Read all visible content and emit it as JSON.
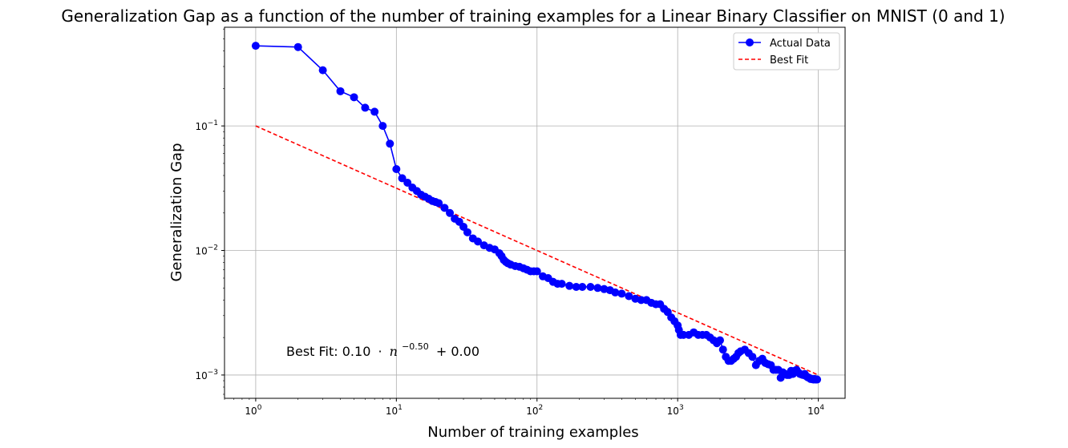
{
  "chart_data": {
    "type": "line",
    "title": "Generalization Gap as a function of the number of training examples for a Linear Binary Classifier on MNIST (0 and 1)",
    "xlabel": "Number of training examples",
    "ylabel": "Generalization Gap",
    "xscale": "log",
    "yscale": "log",
    "xlim": [
      0.6,
      15500
    ],
    "ylim": [
      0.00065,
      0.62
    ],
    "grid": true,
    "legend_position": "top-right",
    "x_ticks": [
      {
        "value": 1,
        "base": "10",
        "exp": "0"
      },
      {
        "value": 10,
        "base": "10",
        "exp": "1"
      },
      {
        "value": 100,
        "base": "10",
        "exp": "2"
      },
      {
        "value": 1000,
        "base": "10",
        "exp": "3"
      },
      {
        "value": 10000,
        "base": "10",
        "exp": "4"
      }
    ],
    "y_ticks": [
      {
        "value": 0.001,
        "base": "10",
        "exp": "−3"
      },
      {
        "value": 0.01,
        "base": "10",
        "exp": "−2"
      },
      {
        "value": 0.1,
        "base": "10",
        "exp": "−1"
      }
    ],
    "annotation": {
      "prefix": "Best Fit: 0.10",
      "dot": "·",
      "var": "n",
      "exp": "−0.50",
      "suffix": "+ 0.00"
    },
    "series": [
      {
        "name": "Actual Data",
        "color": "#0000ff",
        "style": "solid-marker",
        "x": [
          1,
          2,
          3,
          4,
          5,
          6,
          7,
          8,
          9,
          10,
          11,
          12,
          13,
          14,
          15,
          16,
          17,
          18,
          19,
          20,
          22,
          24,
          26,
          28,
          30,
          32,
          35,
          38,
          42,
          46,
          50,
          54,
          56,
          58,
          60,
          62,
          65,
          70,
          75,
          80,
          85,
          90,
          95,
          100,
          110,
          120,
          130,
          140,
          150,
          170,
          190,
          210,
          240,
          270,
          300,
          330,
          360,
          400,
          450,
          500,
          550,
          600,
          650,
          700,
          750,
          800,
          850,
          900,
          950,
          1000,
          1020,
          1050,
          1100,
          1200,
          1300,
          1400,
          1500,
          1600,
          1700,
          1800,
          1900,
          2000,
          2100,
          2200,
          2300,
          2400,
          2500,
          2600,
          2700,
          2800,
          3000,
          3200,
          3400,
          3600,
          3800,
          4000,
          4200,
          4400,
          4600,
          4800,
          5000,
          5200,
          5400,
          5600,
          5800,
          6000,
          6200,
          6400,
          6600,
          6800,
          7000,
          7200,
          7400,
          7600,
          7800,
          8000,
          8200,
          8400,
          8600,
          8800,
          9000,
          9200,
          9400,
          9600,
          9800
        ],
        "y": [
          0.44,
          0.43,
          0.28,
          0.19,
          0.17,
          0.14,
          0.13,
          0.1,
          0.072,
          0.045,
          0.038,
          0.035,
          0.032,
          0.03,
          0.028,
          0.027,
          0.026,
          0.025,
          0.0245,
          0.024,
          0.022,
          0.02,
          0.018,
          0.017,
          0.0155,
          0.014,
          0.0125,
          0.0118,
          0.011,
          0.0105,
          0.0102,
          0.0095,
          0.009,
          0.0084,
          0.0081,
          0.0079,
          0.0077,
          0.0075,
          0.0074,
          0.0072,
          0.007,
          0.0068,
          0.0068,
          0.0068,
          0.0062,
          0.006,
          0.0056,
          0.0054,
          0.0054,
          0.0052,
          0.0051,
          0.0051,
          0.0051,
          0.005,
          0.0049,
          0.0048,
          0.0046,
          0.0045,
          0.0043,
          0.0041,
          0.004,
          0.004,
          0.0038,
          0.0037,
          0.0037,
          0.0034,
          0.0032,
          0.0029,
          0.0027,
          0.0025,
          0.0023,
          0.0021,
          0.0021,
          0.0021,
          0.0022,
          0.0021,
          0.0021,
          0.0021,
          0.002,
          0.0019,
          0.0018,
          0.0019,
          0.0016,
          0.0014,
          0.0013,
          0.0013,
          0.00135,
          0.0014,
          0.0015,
          0.00155,
          0.0016,
          0.0015,
          0.0014,
          0.0012,
          0.0013,
          0.00135,
          0.00125,
          0.00122,
          0.0012,
          0.0011,
          0.0011,
          0.0011,
          0.00095,
          0.00105,
          0.00102,
          0.001,
          0.001,
          0.00108,
          0.00102,
          0.00108,
          0.0011,
          0.00105,
          0.00102,
          0.00101,
          0.001,
          0.00102,
          0.00098,
          0.00096,
          0.00095,
          0.00093,
          0.00093,
          0.00092,
          0.00093,
          0.00092,
          0.00092
        ]
      },
      {
        "name": "Best Fit",
        "color": "#ff0000",
        "style": "dashed",
        "x": [
          1,
          10000
        ],
        "y": [
          0.1,
          0.001
        ]
      }
    ]
  }
}
